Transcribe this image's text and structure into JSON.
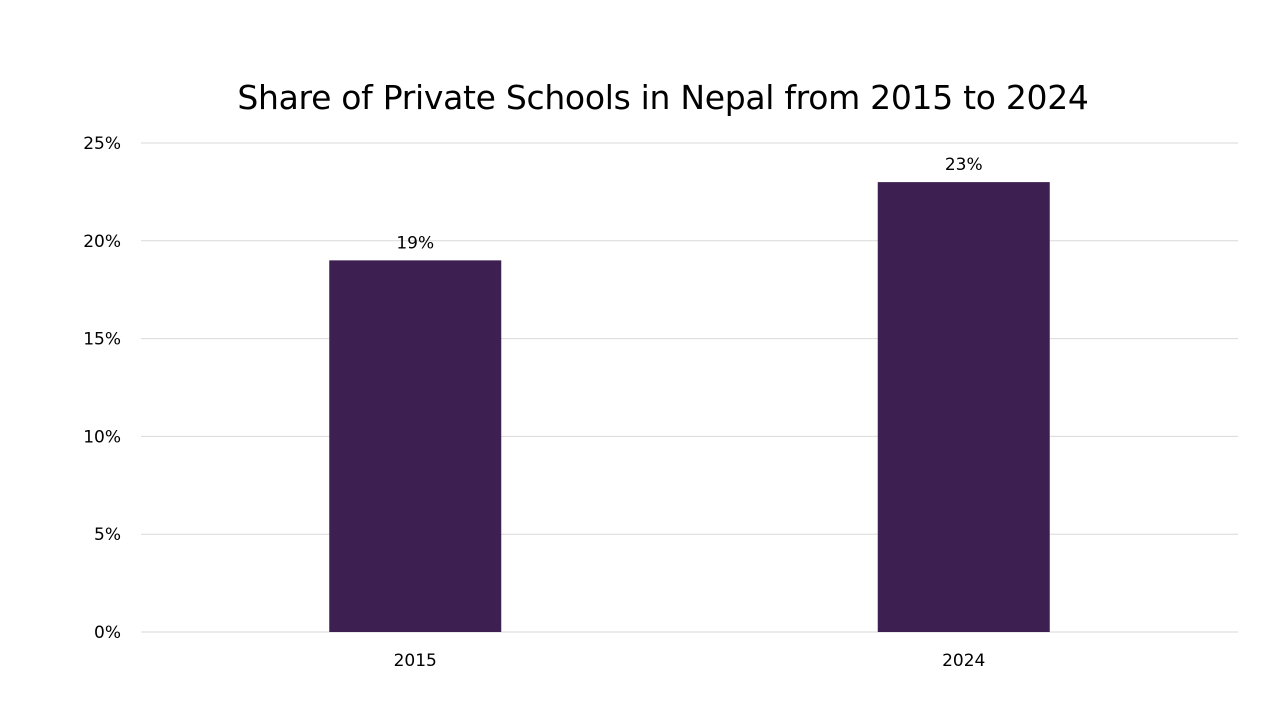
{
  "chart_data": {
    "type": "bar",
    "title": "Share of Private Schools in Nepal from 2015 to 2024",
    "categories": [
      "2015",
      "2024"
    ],
    "values": [
      19,
      23
    ],
    "data_labels": [
      "19%",
      "23%"
    ],
    "xlabel": "",
    "ylabel": "",
    "ylim": [
      0,
      25
    ],
    "yticks": [
      0,
      5,
      10,
      15,
      20,
      25
    ],
    "ytick_labels": [
      "0%",
      "5%",
      "10%",
      "15%",
      "20%",
      "25%"
    ],
    "grid": true,
    "legend": "none",
    "bar_color": "#3d1f52",
    "grid_color": "#d9d9d9"
  }
}
